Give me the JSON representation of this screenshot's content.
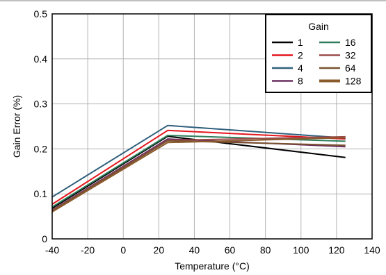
{
  "chart_data": {
    "type": "line",
    "xlabel": "Temperature (°C)",
    "ylabel": "Gain Error (%)",
    "xlim": [
      -40,
      140
    ],
    "ylim": [
      0,
      0.5
    ],
    "xticks": [
      -40,
      -20,
      0,
      20,
      40,
      60,
      80,
      100,
      120,
      140
    ],
    "yticks": [
      0,
      0.1,
      0.2,
      0.3,
      0.4,
      0.5
    ],
    "ytick_labels": [
      "0",
      "0.1",
      "0.2",
      "0.3",
      "0.4",
      "0.5"
    ],
    "grid": true,
    "legend": {
      "title": "Gain",
      "placement": "top-right",
      "columns": 2
    },
    "x": [
      -40,
      25,
      125
    ],
    "series": [
      {
        "name": "1",
        "color": "#000000",
        "values": [
          0.068,
          0.228,
          0.181
        ]
      },
      {
        "name": "2",
        "color": "#e3151c",
        "values": [
          0.077,
          0.241,
          0.222
        ]
      },
      {
        "name": "4",
        "color": "#2f5f7c",
        "values": [
          0.093,
          0.252,
          0.224
        ]
      },
      {
        "name": "8",
        "color": "#6b2e5f",
        "values": [
          0.064,
          0.222,
          0.205
        ]
      },
      {
        "name": "16",
        "color": "#2e7d5b",
        "values": [
          0.071,
          0.23,
          0.217
        ]
      },
      {
        "name": "32",
        "color": "#9b4a4a",
        "values": [
          0.063,
          0.219,
          0.227
        ]
      },
      {
        "name": "64",
        "color": "#7a5230",
        "values": [
          0.062,
          0.218,
          0.208
        ]
      },
      {
        "name": "128",
        "color": "#8b5a2b",
        "values": [
          0.06,
          0.214,
          0.225
        ],
        "bold": true
      }
    ]
  }
}
